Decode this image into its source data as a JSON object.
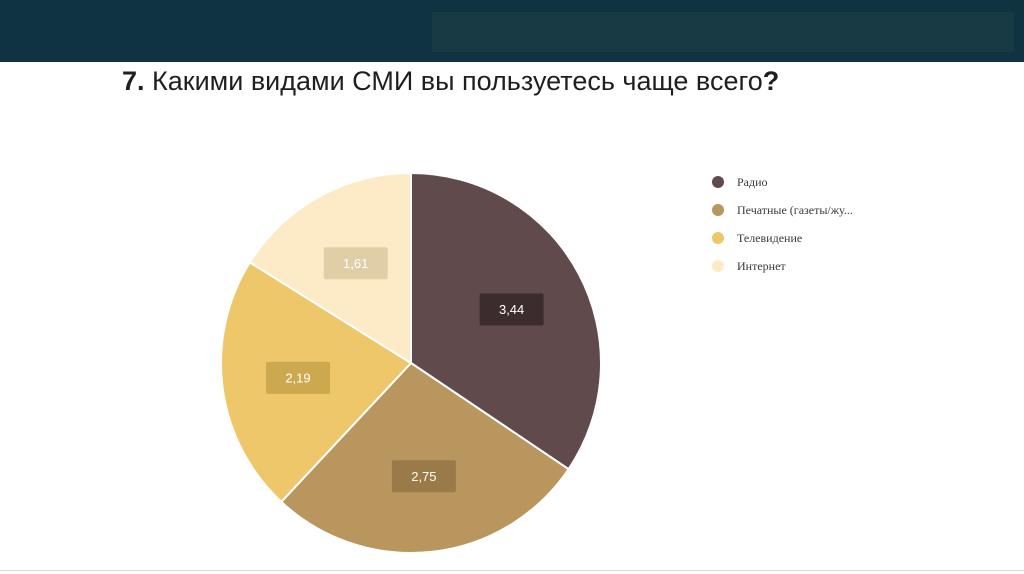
{
  "header": {
    "title_number": "7.",
    "title_text": " Какими видами СМИ вы пользуетесь чаще всего",
    "title_mark": "?"
  },
  "chart_data": {
    "type": "pie",
    "categories": [
      "Радио",
      "Печатные (газеты/жу...",
      "Телевидение",
      "Интернет"
    ],
    "values": [
      3.44,
      2.75,
      2.19,
      1.61
    ],
    "value_labels": [
      "3,44",
      "2,75",
      "2,19",
      "1,61"
    ],
    "colors": [
      "#614a4b",
      "#b8965e",
      "#edc769",
      "#fcebc6"
    ],
    "label_backgrounds": [
      "#3d2c2d",
      "#9a7a48",
      "#cca84e",
      "#e0cfa6"
    ],
    "start_angle": "12 o'clock",
    "direction": "clockwise",
    "legend_position": "right"
  }
}
